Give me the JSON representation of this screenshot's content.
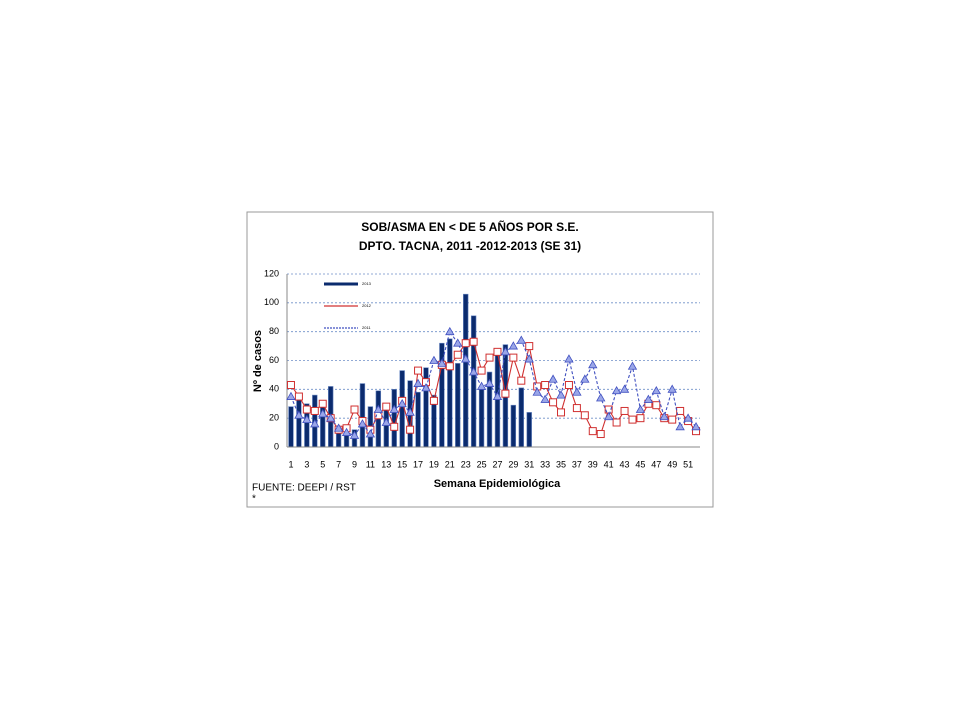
{
  "chart_data": {
    "type": "bar_line",
    "title": "SOB/ASMA EN < DE 5 AÑOS POR S.E.",
    "subtitle": "DPTO. TACNA, 2011 -2012-2013 (SE 31)",
    "y_label": "Nº de casos",
    "x_label": "Semana Epidemiológica",
    "source": "FUENTE: DEEPI / RST",
    "footnote": "*",
    "categories": [
      1,
      null,
      3,
      null,
      5,
      null,
      7,
      null,
      9,
      null,
      11,
      null,
      13,
      null,
      15,
      null,
      17,
      null,
      19,
      null,
      21,
      null,
      23,
      null,
      25,
      null,
      27,
      null,
      29,
      null,
      31,
      null,
      33,
      null,
      35,
      null,
      37,
      null,
      39,
      null,
      41,
      null,
      43,
      null,
      45,
      null,
      47,
      null,
      49,
      null,
      51,
      null
    ],
    "ylim": [
      0,
      120
    ],
    "yticks": [
      0,
      20,
      40,
      60,
      80,
      100,
      120
    ],
    "grid": true,
    "legend": "top-left",
    "series": [
      {
        "name": "2013",
        "kind": "bar",
        "color": "#0b2b6e",
        "values": [
          28,
          33,
          30,
          36,
          30,
          42,
          14,
          12,
          12,
          44,
          28,
          39,
          30,
          40,
          53,
          46,
          38,
          55,
          36,
          72,
          75,
          58,
          106,
          91,
          40,
          52,
          64,
          71,
          29,
          41,
          24,
          null,
          null,
          null,
          null,
          null,
          null,
          null,
          null,
          null,
          null,
          null,
          null,
          null,
          null,
          null,
          null,
          null,
          null,
          null,
          null,
          null
        ]
      },
      {
        "name": "2012",
        "kind": "line",
        "color": "#d03030",
        "values": [
          43,
          35,
          26,
          25,
          30,
          20,
          12,
          13,
          26,
          18,
          12,
          22,
          28,
          14,
          32,
          12,
          53,
          45,
          32,
          57,
          56,
          64,
          72,
          73,
          53,
          62,
          66,
          37,
          62,
          46,
          70,
          42,
          43,
          31,
          24,
          43,
          27,
          22,
          11,
          9,
          26,
          17,
          25,
          19,
          20,
          30,
          29,
          20,
          19,
          25,
          18,
          11
        ]
      },
      {
        "name": "2011",
        "kind": "dashed",
        "color": "#4050c0",
        "values": [
          35,
          22,
          19,
          16,
          23,
          20,
          13,
          10,
          8,
          16,
          9,
          26,
          17,
          26,
          30,
          24,
          44,
          41,
          60,
          58,
          80,
          72,
          61,
          52,
          42,
          44,
          35,
          66,
          70,
          74,
          61,
          38,
          33,
          47,
          36,
          61,
          38,
          47,
          57,
          34,
          21,
          39,
          40,
          56,
          26,
          33,
          39,
          21,
          40,
          14,
          20,
          14
        ]
      }
    ]
  }
}
